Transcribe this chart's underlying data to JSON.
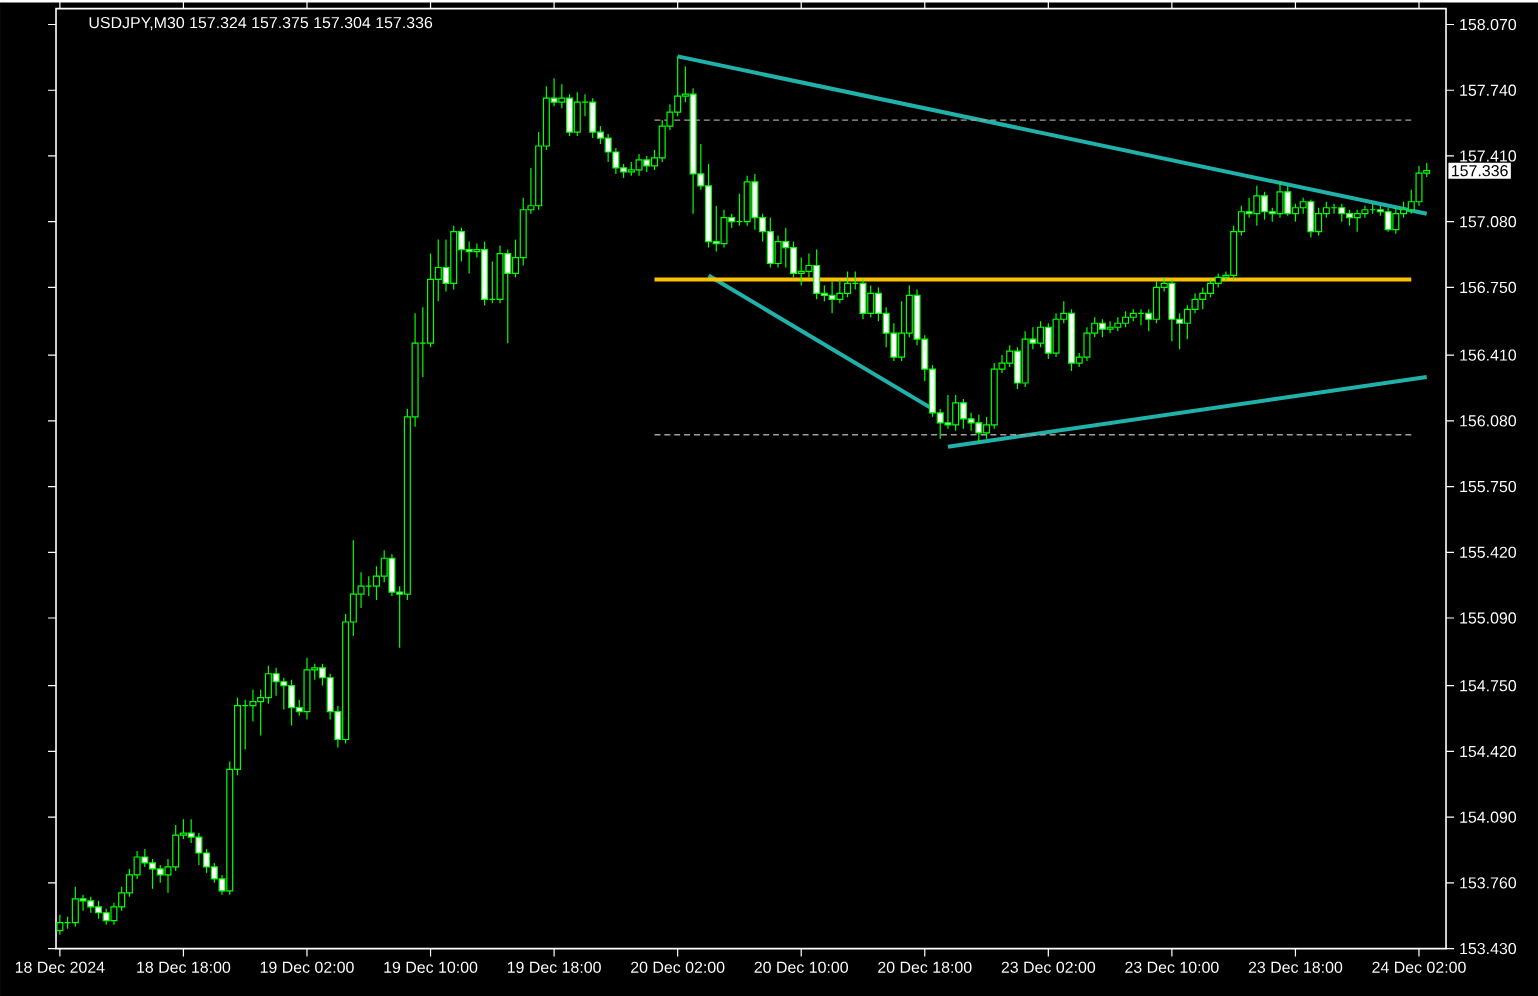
{
  "chart_data": {
    "type": "candlestick",
    "title": "USDJPY,M30  157.324 157.375 157.304 157.336",
    "color": "#00ff00",
    "categories": [
      "18 Dec 2024",
      null,
      null,
      null,
      null,
      null,
      null,
      null,
      null,
      null,
      null,
      null,
      null,
      null,
      null,
      null,
      "18 Dec 18:00",
      null,
      null,
      null,
      null,
      null,
      null,
      null,
      null,
      null,
      null,
      null,
      null,
      null,
      null,
      null,
      "19 Dec 02:00",
      null,
      null,
      null,
      null,
      null,
      null,
      null,
      null,
      null,
      null,
      null,
      null,
      null,
      null,
      null,
      "19 Dec 10:00",
      null,
      null,
      null,
      null,
      null,
      null,
      null,
      null,
      null,
      null,
      null,
      null,
      null,
      null,
      null,
      "19 Dec 18:00",
      null,
      null,
      null,
      null,
      null,
      null,
      null,
      null,
      null,
      null,
      null,
      null,
      null,
      null,
      null,
      "20 Dec 02:00",
      null,
      null,
      null,
      null,
      null,
      null,
      null,
      null,
      null,
      null,
      null,
      null,
      null,
      null,
      null,
      "20 Dec 10:00",
      null,
      null,
      null,
      null,
      null,
      null,
      null,
      null,
      null,
      null,
      null,
      null,
      null,
      null,
      null,
      "20 Dec 18:00",
      null,
      null,
      null,
      null,
      null,
      null,
      null,
      null,
      null,
      null,
      null,
      null,
      null,
      null,
      null,
      "23 Dec 02:00",
      null,
      null,
      null,
      null,
      null,
      null,
      null,
      null,
      null,
      null,
      null,
      null,
      null,
      null,
      null,
      "23 Dec 10:00",
      null,
      null,
      null,
      null,
      null,
      null,
      null,
      null,
      null,
      null,
      null,
      null,
      null,
      null,
      null,
      "23 Dec 18:00",
      null,
      null,
      null,
      null,
      null,
      null,
      null,
      null,
      null,
      null,
      null,
      null,
      null,
      null,
      null,
      "24 Dec 02:00",
      null
    ],
    "ohlc": [
      [
        153.52,
        153.6,
        153.5,
        153.56
      ],
      [
        153.56,
        153.59,
        153.53,
        153.56
      ],
      [
        153.56,
        153.74,
        153.54,
        153.68
      ],
      [
        153.68,
        153.7,
        153.62,
        153.67
      ],
      [
        153.67,
        153.69,
        153.61,
        153.64
      ],
      [
        153.64,
        153.67,
        153.58,
        153.61
      ],
      [
        153.61,
        153.63,
        153.55,
        153.57
      ],
      [
        153.57,
        153.66,
        153.55,
        153.64
      ],
      [
        153.64,
        153.74,
        153.62,
        153.71
      ],
      [
        153.71,
        153.83,
        153.69,
        153.8
      ],
      [
        153.8,
        153.92,
        153.78,
        153.89
      ],
      [
        153.89,
        153.93,
        153.84,
        153.86
      ],
      [
        153.86,
        153.88,
        153.73,
        153.83
      ],
      [
        153.83,
        153.85,
        153.76,
        153.8
      ],
      [
        153.8,
        153.88,
        153.71,
        153.84
      ],
      [
        153.84,
        154.05,
        153.82,
        154.0
      ],
      [
        154.0,
        154.08,
        153.98,
        154.01
      ],
      [
        154.01,
        154.08,
        153.96,
        153.99
      ],
      [
        153.99,
        154.01,
        153.85,
        153.91
      ],
      [
        153.91,
        153.93,
        153.81,
        153.84
      ],
      [
        153.84,
        153.86,
        153.76,
        153.78
      ],
      [
        153.78,
        153.8,
        153.7,
        153.72
      ],
      [
        153.72,
        154.37,
        153.7,
        154.33
      ],
      [
        154.33,
        154.69,
        154.3,
        154.65
      ],
      [
        154.65,
        154.68,
        154.43,
        154.65
      ],
      [
        154.65,
        154.73,
        154.57,
        154.67
      ],
      [
        154.67,
        154.73,
        154.5,
        154.69
      ],
      [
        154.69,
        154.85,
        154.66,
        154.81
      ],
      [
        154.81,
        154.84,
        154.7,
        154.77
      ],
      [
        154.77,
        154.79,
        154.63,
        154.75
      ],
      [
        154.75,
        154.78,
        154.55,
        154.64
      ],
      [
        154.64,
        154.68,
        154.6,
        154.62
      ],
      [
        154.62,
        154.89,
        154.58,
        154.83
      ],
      [
        154.83,
        154.86,
        154.78,
        154.84
      ],
      [
        154.84,
        154.86,
        154.75,
        154.79
      ],
      [
        154.79,
        154.81,
        154.58,
        154.62
      ],
      [
        154.62,
        154.65,
        154.44,
        154.48
      ],
      [
        154.48,
        155.11,
        154.46,
        155.07
      ],
      [
        155.07,
        155.48,
        155.0,
        155.21
      ],
      [
        155.21,
        155.32,
        155.14,
        155.25
      ],
      [
        155.25,
        155.3,
        155.2,
        155.25
      ],
      [
        155.25,
        155.35,
        155.18,
        155.3
      ],
      [
        155.3,
        155.43,
        155.27,
        155.39
      ],
      [
        155.39,
        155.41,
        155.2,
        155.22
      ],
      [
        155.22,
        155.25,
        154.94,
        155.21
      ],
      [
        155.21,
        156.14,
        155.18,
        156.1
      ],
      [
        156.1,
        156.62,
        156.05,
        156.47
      ],
      [
        156.47,
        156.65,
        156.3,
        156.47
      ],
      [
        156.47,
        156.92,
        156.45,
        156.79
      ],
      [
        156.79,
        156.99,
        156.68,
        156.85
      ],
      [
        156.85,
        156.99,
        156.73,
        156.77
      ],
      [
        156.77,
        157.06,
        156.74,
        157.03
      ],
      [
        157.03,
        157.05,
        156.88,
        156.94
      ],
      [
        156.94,
        156.98,
        156.82,
        156.93
      ],
      [
        156.93,
        156.97,
        156.9,
        156.94
      ],
      [
        156.94,
        156.98,
        156.66,
        156.69
      ],
      [
        156.69,
        156.88,
        156.67,
        156.69
      ],
      [
        156.69,
        156.96,
        156.67,
        156.92
      ],
      [
        156.92,
        156.94,
        156.47,
        156.82
      ],
      [
        156.82,
        156.99,
        156.8,
        156.9
      ],
      [
        156.9,
        157.2,
        156.86,
        157.14
      ],
      [
        157.14,
        157.35,
        157.12,
        157.16
      ],
      [
        157.16,
        157.53,
        157.14,
        157.46
      ],
      [
        157.46,
        157.76,
        157.44,
        157.7
      ],
      [
        157.7,
        157.8,
        157.66,
        157.68
      ],
      [
        157.68,
        157.77,
        157.65,
        157.7
      ],
      [
        157.7,
        157.72,
        157.51,
        157.53
      ],
      [
        157.53,
        157.73,
        157.51,
        157.68
      ],
      [
        157.68,
        157.72,
        157.61,
        157.68
      ],
      [
        157.68,
        157.7,
        157.5,
        157.53
      ],
      [
        157.53,
        157.56,
        157.47,
        157.5
      ],
      [
        157.5,
        157.52,
        157.38,
        157.43
      ],
      [
        157.43,
        157.45,
        157.32,
        157.35
      ],
      [
        157.35,
        157.37,
        157.3,
        157.33
      ],
      [
        157.33,
        157.38,
        157.31,
        157.34
      ],
      [
        157.34,
        157.42,
        157.31,
        157.39
      ],
      [
        157.39,
        157.41,
        157.33,
        157.36
      ],
      [
        157.36,
        157.44,
        157.34,
        157.4
      ],
      [
        157.4,
        157.59,
        157.38,
        157.56
      ],
      [
        157.56,
        157.67,
        157.54,
        157.63
      ],
      [
        157.63,
        157.91,
        157.61,
        157.71
      ],
      [
        157.71,
        157.86,
        157.68,
        157.72
      ],
      [
        157.72,
        157.75,
        157.12,
        157.32
      ],
      [
        157.32,
        157.47,
        157.24,
        157.26
      ],
      [
        157.26,
        157.37,
        156.95,
        156.98
      ],
      [
        156.98,
        157.16,
        156.93,
        156.97
      ],
      [
        156.97,
        157.14,
        156.95,
        157.1
      ],
      [
        157.1,
        157.12,
        157.05,
        157.08
      ],
      [
        157.08,
        157.22,
        157.06,
        157.08
      ],
      [
        157.08,
        157.31,
        157.06,
        157.28
      ],
      [
        157.28,
        157.32,
        157.04,
        157.1
      ],
      [
        157.1,
        157.12,
        156.98,
        157.03
      ],
      [
        157.03,
        157.1,
        156.85,
        156.87
      ],
      [
        156.87,
        157.01,
        156.85,
        156.98
      ],
      [
        156.98,
        157.05,
        156.85,
        156.95
      ],
      [
        156.95,
        156.98,
        156.8,
        156.82
      ],
      [
        156.82,
        156.9,
        156.76,
        156.83
      ],
      [
        156.83,
        156.92,
        156.8,
        156.86
      ],
      [
        156.86,
        156.94,
        156.69,
        156.72
      ],
      [
        156.72,
        156.76,
        156.68,
        156.71
      ],
      [
        156.71,
        156.78,
        156.62,
        156.69
      ],
      [
        156.69,
        156.79,
        156.67,
        156.72
      ],
      [
        156.72,
        156.83,
        156.7,
        156.77
      ],
      [
        156.77,
        156.83,
        156.74,
        156.77
      ],
      [
        156.77,
        156.79,
        156.59,
        156.62
      ],
      [
        156.62,
        156.76,
        156.6,
        156.72
      ],
      [
        156.72,
        156.75,
        156.58,
        156.62
      ],
      [
        156.62,
        156.65,
        156.45,
        156.52
      ],
      [
        156.52,
        156.57,
        156.38,
        156.4
      ],
      [
        156.4,
        156.68,
        156.38,
        156.52
      ],
      [
        156.52,
        156.76,
        156.5,
        156.71
      ],
      [
        156.71,
        156.74,
        156.46,
        156.49
      ],
      [
        156.49,
        156.51,
        156.28,
        156.34
      ],
      [
        156.34,
        156.36,
        156.1,
        156.12
      ],
      [
        156.12,
        156.14,
        155.99,
        156.07
      ],
      [
        156.07,
        156.21,
        156.04,
        156.06
      ],
      [
        156.06,
        156.21,
        156.03,
        156.17
      ],
      [
        156.17,
        156.19,
        156.04,
        156.09
      ],
      [
        156.09,
        156.12,
        156.03,
        156.07
      ],
      [
        156.07,
        156.11,
        155.97,
        156.02
      ],
      [
        156.02,
        156.1,
        155.99,
        156.06
      ],
      [
        156.06,
        156.37,
        156.04,
        156.34
      ],
      [
        156.34,
        156.41,
        156.32,
        156.37
      ],
      [
        156.37,
        156.46,
        156.35,
        156.43
      ],
      [
        156.43,
        156.45,
        156.24,
        156.27
      ],
      [
        156.27,
        156.53,
        156.25,
        156.49
      ],
      [
        156.49,
        156.55,
        156.44,
        156.47
      ],
      [
        156.47,
        156.58,
        156.45,
        156.55
      ],
      [
        156.55,
        156.57,
        156.39,
        156.42
      ],
      [
        156.42,
        156.62,
        156.4,
        156.59
      ],
      [
        156.59,
        156.68,
        156.57,
        156.62
      ],
      [
        156.62,
        156.64,
        156.33,
        156.37
      ],
      [
        156.37,
        156.42,
        156.35,
        156.4
      ],
      [
        156.4,
        156.55,
        156.38,
        156.52
      ],
      [
        156.52,
        156.6,
        156.5,
        156.57
      ],
      [
        156.57,
        156.59,
        156.5,
        156.54
      ],
      [
        156.54,
        156.58,
        156.52,
        156.55
      ],
      [
        156.55,
        156.6,
        156.53,
        156.57
      ],
      [
        156.57,
        156.63,
        156.55,
        156.6
      ],
      [
        156.6,
        156.64,
        156.58,
        156.62
      ],
      [
        156.62,
        156.64,
        156.56,
        156.62
      ],
      [
        156.62,
        156.64,
        156.53,
        156.59
      ],
      [
        156.59,
        156.78,
        156.57,
        156.75
      ],
      [
        156.75,
        156.8,
        156.73,
        156.77
      ],
      [
        156.77,
        156.79,
        156.48,
        156.59
      ],
      [
        156.59,
        156.62,
        156.44,
        156.57
      ],
      [
        156.57,
        156.66,
        156.49,
        156.64
      ],
      [
        156.64,
        156.72,
        156.62,
        156.69
      ],
      [
        156.69,
        156.75,
        156.64,
        156.72
      ],
      [
        156.72,
        156.79,
        156.7,
        156.77
      ],
      [
        156.77,
        156.82,
        156.75,
        156.8
      ],
      [
        156.8,
        156.83,
        156.78,
        156.81
      ],
      [
        156.81,
        157.06,
        156.79,
        157.03
      ],
      [
        157.03,
        157.16,
        157.01,
        157.13
      ],
      [
        157.13,
        157.2,
        157.1,
        157.12
      ],
      [
        157.12,
        157.26,
        157.06,
        157.21
      ],
      [
        157.21,
        157.23,
        157.09,
        157.13
      ],
      [
        157.13,
        157.15,
        157.08,
        157.12
      ],
      [
        157.12,
        157.28,
        157.1,
        157.23
      ],
      [
        157.23,
        157.26,
        157.11,
        157.12
      ],
      [
        157.12,
        157.17,
        157.08,
        157.15
      ],
      [
        157.15,
        157.2,
        157.12,
        157.18
      ],
      [
        157.18,
        157.19,
        157.0,
        157.03
      ],
      [
        157.03,
        157.15,
        157.01,
        157.12
      ],
      [
        157.12,
        157.18,
        157.1,
        157.15
      ],
      [
        157.15,
        157.17,
        157.12,
        157.15
      ],
      [
        157.15,
        157.17,
        157.08,
        157.12
      ],
      [
        157.12,
        157.14,
        157.06,
        157.1
      ],
      [
        157.1,
        157.14,
        157.03,
        157.12
      ],
      [
        157.12,
        157.16,
        157.1,
        157.14
      ],
      [
        157.14,
        157.17,
        157.12,
        157.14
      ],
      [
        157.14,
        157.16,
        157.11,
        157.13
      ],
      [
        157.13,
        157.15,
        157.03,
        157.04
      ],
      [
        157.04,
        157.15,
        157.02,
        157.12
      ],
      [
        157.12,
        157.18,
        157.1,
        157.14
      ],
      [
        157.14,
        157.24,
        157.12,
        157.18
      ],
      [
        157.18,
        157.36,
        157.16,
        157.324
      ],
      [
        157.324,
        157.375,
        157.304,
        157.336
      ]
    ],
    "series": [
      {
        "type": "line",
        "color": "#20b2aa",
        "line_style": "solid",
        "values": [
          null,
          null,
          null,
          null,
          null,
          null,
          null,
          null,
          null,
          null,
          null,
          null,
          null,
          null,
          null,
          null,
          null,
          null,
          null,
          null,
          null,
          null,
          null,
          null,
          null,
          null,
          null,
          null,
          null,
          null,
          null,
          null,
          null,
          null,
          null,
          null,
          null,
          null,
          null,
          null,
          null,
          null,
          null,
          null,
          null,
          null,
          null,
          null,
          null,
          null,
          null,
          null,
          null,
          null,
          null,
          null,
          null,
          null,
          null,
          null,
          null,
          null,
          null,
          null,
          null,
          null,
          null,
          null,
          null,
          null,
          null,
          null,
          null,
          null,
          null,
          null,
          null,
          null,
          null,
          null,
          157.91,
          null,
          null,
          null,
          null,
          null,
          null,
          null,
          null,
          null,
          null,
          null,
          null,
          null,
          null,
          null,
          null,
          null,
          null,
          null,
          null,
          null,
          null,
          null,
          null,
          null,
          null,
          null,
          null,
          null,
          null,
          null,
          null,
          null,
          null,
          null,
          null,
          null,
          null,
          null,
          null,
          null,
          null,
          null,
          null,
          null,
          null,
          null,
          null,
          null,
          null,
          null,
          null,
          null,
          null,
          null,
          null,
          null,
          null,
          null,
          null,
          null,
          null,
          null,
          null,
          null,
          null,
          null,
          null,
          null,
          null,
          null,
          null,
          null,
          null,
          null,
          null,
          null,
          null,
          null,
          null,
          null,
          null,
          null,
          null,
          null,
          null,
          null,
          null,
          null,
          null,
          null,
          null,
          null,
          null,
          null,
          null,
          157.12
        ]
      },
      {
        "type": "line",
        "color": "#20b2aa",
        "line_style": "solid",
        "values": [
          null,
          null,
          null,
          null,
          null,
          null,
          null,
          null,
          null,
          null,
          null,
          null,
          null,
          null,
          null,
          null,
          null,
          null,
          null,
          null,
          null,
          null,
          null,
          null,
          null,
          null,
          null,
          null,
          null,
          null,
          null,
          null,
          null,
          null,
          null,
          null,
          null,
          null,
          null,
          null,
          null,
          null,
          null,
          null,
          null,
          null,
          null,
          null,
          null,
          null,
          null,
          null,
          null,
          null,
          null,
          null,
          null,
          null,
          null,
          null,
          null,
          null,
          null,
          null,
          null,
          null,
          null,
          null,
          null,
          null,
          null,
          null,
          null,
          null,
          null,
          null,
          null,
          null,
          null,
          null,
          null,
          null,
          null,
          null,
          156.81,
          null,
          null,
          null,
          null,
          null,
          null,
          null,
          null,
          null,
          null,
          null,
          null,
          null,
          null,
          null,
          null,
          null,
          null,
          null,
          null,
          null,
          null,
          null,
          null,
          null,
          null,
          null,
          null,
          156.14,
          null,
          null,
          null,
          null,
          null,
          null,
          null,
          null,
          null,
          null,
          null,
          null,
          null,
          null,
          null,
          null,
          null,
          null,
          null,
          null,
          null,
          null,
          null,
          null,
          null,
          null,
          null,
          null,
          null,
          null,
          null,
          null,
          null,
          null,
          null,
          null,
          null,
          null,
          null,
          null,
          null,
          null,
          null,
          null,
          null,
          null,
          null,
          null,
          null,
          null,
          null,
          null,
          null,
          null,
          null,
          null,
          null,
          null,
          null,
          null,
          null,
          null,
          null,
          null
        ]
      },
      {
        "type": "line",
        "color": "#20b2aa",
        "line_style": "solid",
        "values": [
          null,
          null,
          null,
          null,
          null,
          null,
          null,
          null,
          null,
          null,
          null,
          null,
          null,
          null,
          null,
          null,
          null,
          null,
          null,
          null,
          null,
          null,
          null,
          null,
          null,
          null,
          null,
          null,
          null,
          null,
          null,
          null,
          null,
          null,
          null,
          null,
          null,
          null,
          null,
          null,
          null,
          null,
          null,
          null,
          null,
          null,
          null,
          null,
          null,
          null,
          null,
          null,
          null,
          null,
          null,
          null,
          null,
          null,
          null,
          null,
          null,
          null,
          null,
          null,
          null,
          null,
          null,
          null,
          null,
          null,
          null,
          null,
          null,
          null,
          null,
          null,
          null,
          null,
          null,
          null,
          null,
          null,
          null,
          null,
          null,
          null,
          null,
          null,
          null,
          null,
          null,
          null,
          null,
          null,
          null,
          null,
          null,
          null,
          null,
          null,
          null,
          null,
          null,
          null,
          null,
          null,
          null,
          null,
          null,
          null,
          null,
          null,
          null,
          null,
          null,
          155.95,
          null,
          null,
          null,
          null,
          null,
          null,
          null,
          null,
          null,
          null,
          null,
          null,
          null,
          null,
          null,
          null,
          null,
          null,
          null,
          null,
          null,
          null,
          null,
          null,
          null,
          null,
          null,
          null,
          null,
          null,
          null,
          null,
          null,
          null,
          null,
          null,
          null,
          null,
          null,
          null,
          null,
          null,
          null,
          null,
          null,
          null,
          null,
          null,
          null,
          null,
          null,
          null,
          null,
          null,
          null,
          null,
          null,
          null,
          null,
          null,
          null,
          156.3
        ]
      },
      {
        "type": "line",
        "color": "#ffc000",
        "line_style": "solid",
        "values": [
          null,
          null,
          null,
          null,
          null,
          null,
          null,
          null,
          null,
          null,
          null,
          null,
          null,
          null,
          null,
          null,
          null,
          null,
          null,
          null,
          null,
          null,
          null,
          null,
          null,
          null,
          null,
          null,
          null,
          null,
          null,
          null,
          null,
          null,
          null,
          null,
          null,
          null,
          null,
          null,
          null,
          null,
          null,
          null,
          null,
          null,
          null,
          null,
          null,
          null,
          null,
          null,
          null,
          null,
          null,
          null,
          null,
          null,
          null,
          null,
          null,
          null,
          null,
          null,
          null,
          null,
          null,
          null,
          null,
          null,
          null,
          null,
          null,
          null,
          null,
          null,
          null,
          156.79,
          null,
          null,
          null,
          null,
          null,
          null,
          null,
          null,
          null,
          null,
          null,
          null,
          null,
          null,
          null,
          null,
          null,
          null,
          null,
          null,
          null,
          null,
          null,
          null,
          null,
          null,
          null,
          null,
          null,
          null,
          null,
          null,
          null,
          null,
          null,
          null,
          null,
          null,
          null,
          null,
          null,
          null,
          null,
          null,
          null,
          null,
          null,
          null,
          null,
          null,
          null,
          null,
          null,
          null,
          null,
          null,
          null,
          null,
          null,
          null,
          null,
          null,
          null,
          null,
          null,
          null,
          null,
          null,
          null,
          null,
          null,
          null,
          null,
          null,
          null,
          null,
          null,
          null,
          null,
          null,
          null,
          null,
          null,
          null,
          null,
          null,
          null,
          null,
          null,
          null,
          null,
          null,
          null,
          null,
          null,
          null,
          null,
          156.79,
          null,
          null
        ]
      },
      {
        "type": "line",
        "color": "#a0a0a0",
        "line_style": "dashed",
        "values": [
          null,
          null,
          null,
          null,
          null,
          null,
          null,
          null,
          null,
          null,
          null,
          null,
          null,
          null,
          null,
          null,
          null,
          null,
          null,
          null,
          null,
          null,
          null,
          null,
          null,
          null,
          null,
          null,
          null,
          null,
          null,
          null,
          null,
          null,
          null,
          null,
          null,
          null,
          null,
          null,
          null,
          null,
          null,
          null,
          null,
          null,
          null,
          null,
          null,
          null,
          null,
          null,
          null,
          null,
          null,
          null,
          null,
          null,
          null,
          null,
          null,
          null,
          null,
          null,
          null,
          null,
          null,
          null,
          null,
          null,
          null,
          null,
          null,
          null,
          null,
          null,
          null,
          157.59,
          null,
          null,
          null,
          null,
          null,
          null,
          null,
          null,
          null,
          null,
          null,
          null,
          null,
          null,
          null,
          null,
          null,
          null,
          null,
          null,
          null,
          null,
          null,
          null,
          null,
          null,
          null,
          null,
          null,
          null,
          null,
          null,
          null,
          null,
          null,
          null,
          null,
          null,
          null,
          null,
          null,
          null,
          null,
          null,
          null,
          null,
          null,
          null,
          null,
          null,
          null,
          null,
          null,
          null,
          null,
          null,
          null,
          null,
          null,
          null,
          null,
          null,
          null,
          null,
          null,
          null,
          null,
          null,
          null,
          null,
          null,
          null,
          null,
          null,
          null,
          null,
          null,
          null,
          null,
          null,
          null,
          null,
          null,
          null,
          null,
          null,
          null,
          null,
          null,
          null,
          null,
          null,
          null,
          null,
          null,
          null,
          null,
          157.59,
          null,
          null
        ]
      },
      {
        "type": "line",
        "color": "#a0a0a0",
        "line_style": "dashed",
        "values": [
          null,
          null,
          null,
          null,
          null,
          null,
          null,
          null,
          null,
          null,
          null,
          null,
          null,
          null,
          null,
          null,
          null,
          null,
          null,
          null,
          null,
          null,
          null,
          null,
          null,
          null,
          null,
          null,
          null,
          null,
          null,
          null,
          null,
          null,
          null,
          null,
          null,
          null,
          null,
          null,
          null,
          null,
          null,
          null,
          null,
          null,
          null,
          null,
          null,
          null,
          null,
          null,
          null,
          null,
          null,
          null,
          null,
          null,
          null,
          null,
          null,
          null,
          null,
          null,
          null,
          null,
          null,
          null,
          null,
          null,
          null,
          null,
          null,
          null,
          null,
          null,
          null,
          156.01,
          null,
          null,
          null,
          null,
          null,
          null,
          null,
          null,
          null,
          null,
          null,
          null,
          null,
          null,
          null,
          null,
          null,
          null,
          null,
          null,
          null,
          null,
          null,
          null,
          null,
          null,
          null,
          null,
          null,
          null,
          null,
          null,
          null,
          null,
          null,
          null,
          null,
          null,
          null,
          null,
          null,
          null,
          null,
          null,
          null,
          null,
          null,
          null,
          null,
          null,
          null,
          null,
          null,
          null,
          null,
          null,
          null,
          null,
          null,
          null,
          null,
          null,
          null,
          null,
          null,
          null,
          null,
          null,
          null,
          null,
          null,
          null,
          null,
          null,
          null,
          null,
          null,
          null,
          null,
          null,
          null,
          null,
          null,
          null,
          null,
          null,
          null,
          null,
          null,
          null,
          null,
          null,
          null,
          null,
          null,
          null,
          null,
          156.01,
          null,
          null
        ]
      }
    ],
    "ylim": [
      153.43,
      158.15
    ],
    "yticks": [
      {
        "value": 153.43,
        "label": "153.430"
      },
      {
        "value": 153.76,
        "label": "153.760"
      },
      {
        "value": 154.09,
        "label": "154.090"
      },
      {
        "value": 154.42,
        "label": "154.420"
      },
      {
        "value": 154.75,
        "label": "154.750"
      },
      {
        "value": 155.09,
        "label": "155.090"
      },
      {
        "value": 155.42,
        "label": "155.420"
      },
      {
        "value": 155.75,
        "label": "155.750"
      },
      {
        "value": 156.08,
        "label": "156.080"
      },
      {
        "value": 156.41,
        "label": "156.410"
      },
      {
        "value": 156.75,
        "label": "156.750"
      },
      {
        "value": 157.08,
        "label": "157.080"
      },
      {
        "value": 157.41,
        "label": "157.410"
      },
      {
        "value": 157.74,
        "label": "157.740"
      },
      {
        "value": 158.07,
        "label": "158.070"
      }
    ],
    "annotations": [
      "157.336"
    ]
  }
}
